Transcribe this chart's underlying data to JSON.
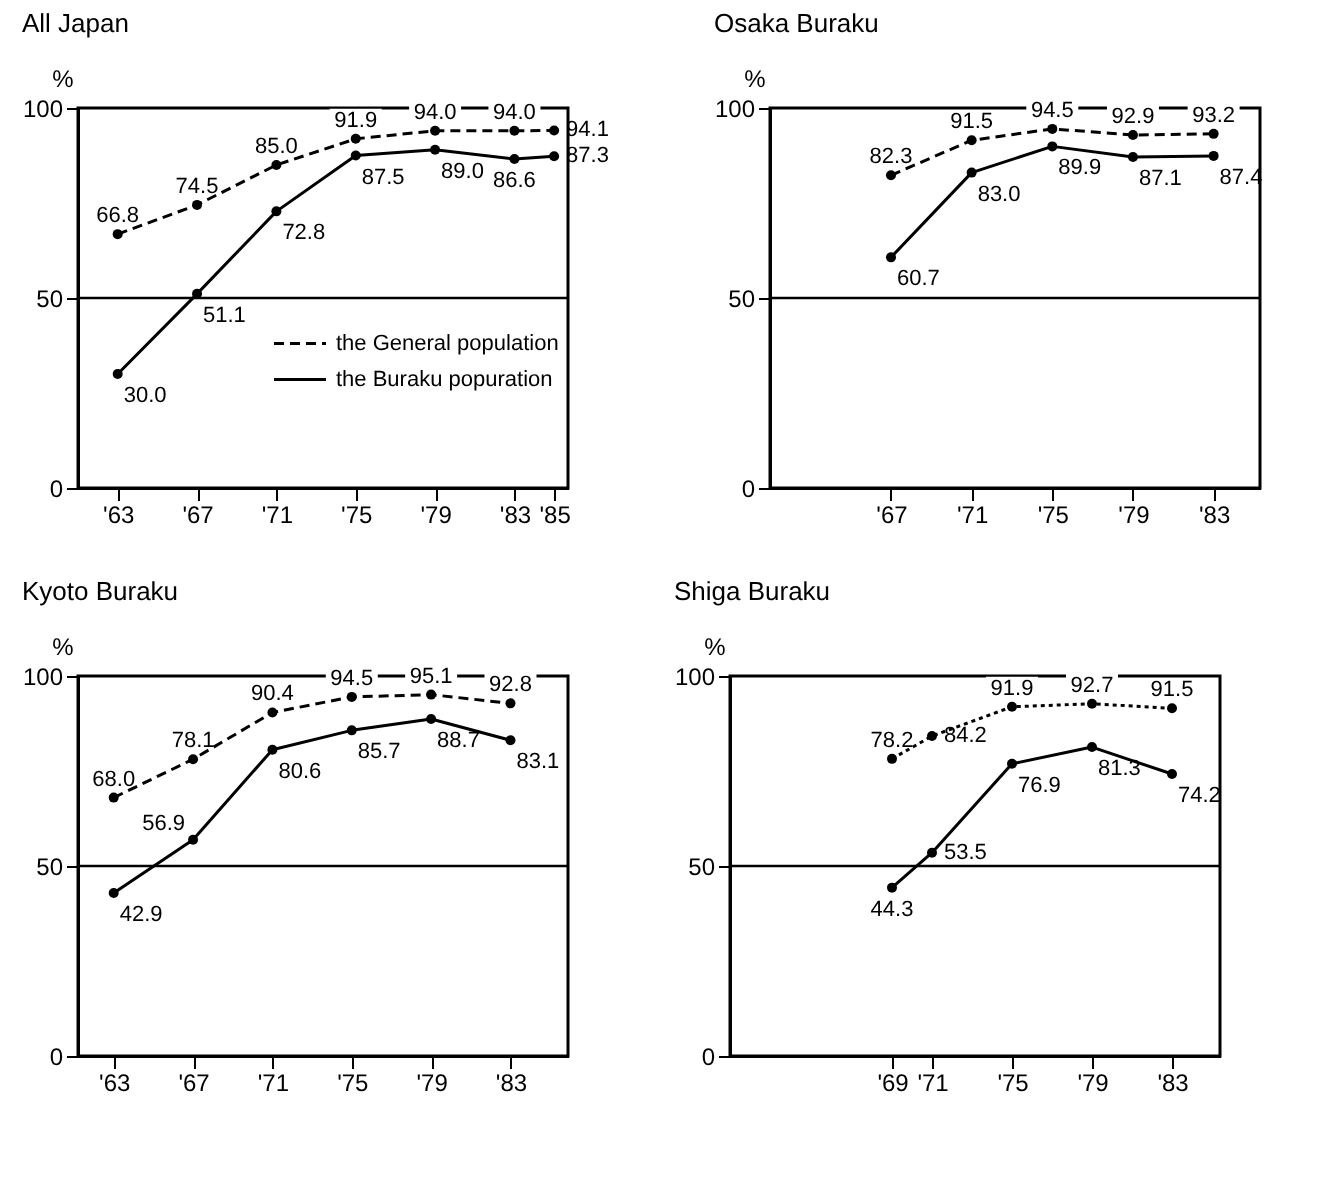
{
  "chart_data": [
    {
      "type": "line",
      "title": "All Japan",
      "ylabel": "%",
      "x": [
        1963,
        1967,
        1971,
        1975,
        1979,
        1983,
        1985
      ],
      "xlim": [
        1961,
        1985.7
      ],
      "xticks": [
        {
          "value": 1963,
          "label": "'63"
        },
        {
          "value": 1967,
          "label": "'67"
        },
        {
          "value": 1971,
          "label": "'71"
        },
        {
          "value": 1975,
          "label": "'75"
        },
        {
          "value": 1979,
          "label": "'79"
        },
        {
          "value": 1983,
          "label": "'83"
        },
        {
          "value": 1985,
          "label": "'85"
        }
      ],
      "ylim": [
        0,
        100
      ],
      "yticks": [
        0,
        50,
        100
      ],
      "marker": "circle",
      "legend": "bottom right",
      "ref_lines": [
        {
          "axis": "y",
          "value": 50
        }
      ],
      "series": [
        {
          "name": "the General population",
          "color": "#000000",
          "line_style": "dashed",
          "values": [
            66.8,
            74.5,
            85.0,
            91.9,
            94.0,
            94.0,
            94.1
          ],
          "value_labels": [
            "66.8",
            "74.5",
            "85.0",
            "91.9",
            "94.0",
            "94.0",
            "94.1"
          ]
        },
        {
          "name": "the Buraku popuration",
          "color": "#000000",
          "line_style": "solid",
          "values": [
            30.0,
            51.1,
            72.8,
            87.5,
            89.0,
            86.6,
            87.3
          ],
          "value_labels": [
            "30.0",
            "51.1",
            "72.8",
            "87.5",
            "89.0",
            "86.6",
            "87.3"
          ]
        }
      ]
    },
    {
      "type": "line",
      "title": "Osaka Buraku",
      "ylabel": "%",
      "x": [
        1967,
        1971,
        1975,
        1979,
        1983
      ],
      "xlim": [
        1961,
        1985.3
      ],
      "xticks": [
        {
          "value": 1967,
          "label": "'67"
        },
        {
          "value": 1971,
          "label": "'71"
        },
        {
          "value": 1975,
          "label": "'75"
        },
        {
          "value": 1979,
          "label": "'79"
        },
        {
          "value": 1983,
          "label": "'83"
        }
      ],
      "ylim": [
        0,
        100
      ],
      "yticks": [
        0,
        50,
        100
      ],
      "marker": "circle",
      "ref_lines": [
        {
          "axis": "y",
          "value": 50
        }
      ],
      "series": [
        {
          "color": "#000000",
          "line_style": "dashed",
          "values": [
            82.3,
            91.5,
            94.5,
            92.9,
            93.2
          ],
          "value_labels": [
            "82.3",
            "91.5",
            "94.5",
            "92.9",
            "93.2"
          ]
        },
        {
          "color": "#000000",
          "line_style": "solid",
          "values": [
            60.7,
            83.0,
            89.9,
            87.1,
            87.4
          ],
          "value_labels": [
            "60.7",
            "83.0",
            "89.9",
            "87.1",
            "87.4"
          ]
        }
      ]
    },
    {
      "type": "line",
      "title": "Kyoto Buraku",
      "ylabel": "%",
      "x": [
        1963,
        1967,
        1971,
        1975,
        1979,
        1983
      ],
      "xlim": [
        1961.2,
        1985.9
      ],
      "xticks": [
        {
          "value": 1963,
          "label": "'63"
        },
        {
          "value": 1967,
          "label": "'67"
        },
        {
          "value": 1971,
          "label": "'71"
        },
        {
          "value": 1975,
          "label": "'75"
        },
        {
          "value": 1979,
          "label": "'79"
        },
        {
          "value": 1983,
          "label": "'83"
        }
      ],
      "ylim": [
        0,
        100
      ],
      "yticks": [
        0,
        50,
        100
      ],
      "marker": "circle",
      "ref_lines": [
        {
          "axis": "y",
          "value": 50
        }
      ],
      "series": [
        {
          "color": "#000000",
          "line_style": "dashed",
          "values": [
            68.0,
            78.1,
            90.4,
            94.5,
            95.1,
            92.8
          ],
          "value_labels": [
            "68.0",
            "78.1",
            "90.4",
            "94.5",
            "95.1",
            "92.8"
          ]
        },
        {
          "color": "#000000",
          "line_style": "solid",
          "values": [
            42.9,
            56.9,
            80.6,
            85.7,
            88.7,
            83.1
          ],
          "value_labels": [
            "42.9",
            "56.9",
            "80.6",
            "85.7",
            "88.7",
            "83.1"
          ]
        }
      ]
    },
    {
      "type": "line",
      "title": "Shiga Buraku",
      "ylabel": "%",
      "x": [
        1969,
        1971,
        1975,
        1979,
        1983
      ],
      "xlim": [
        1960.9,
        1985.4
      ],
      "xticks": [
        {
          "value": 1969,
          "label": "'69"
        },
        {
          "value": 1971,
          "label": "'71"
        },
        {
          "value": 1975,
          "label": "'75"
        },
        {
          "value": 1979,
          "label": "'79"
        },
        {
          "value": 1983,
          "label": "'83"
        }
      ],
      "ylim": [
        0,
        100
      ],
      "yticks": [
        0,
        50,
        100
      ],
      "marker": "circle",
      "ref_lines": [
        {
          "axis": "y",
          "value": 50
        }
      ],
      "series": [
        {
          "color": "#000000",
          "line_style": "dotted",
          "values": [
            78.2,
            84.2,
            91.9,
            92.7,
            91.5
          ],
          "value_labels": [
            "78.2",
            "84.2",
            "91.9",
            "92.7",
            "91.5"
          ]
        },
        {
          "color": "#000000",
          "line_style": "solid",
          "values": [
            44.3,
            53.5,
            76.9,
            81.3,
            74.2
          ],
          "value_labels": [
            "44.3",
            "53.5",
            "76.9",
            "81.3",
            "74.2"
          ]
        }
      ]
    }
  ]
}
